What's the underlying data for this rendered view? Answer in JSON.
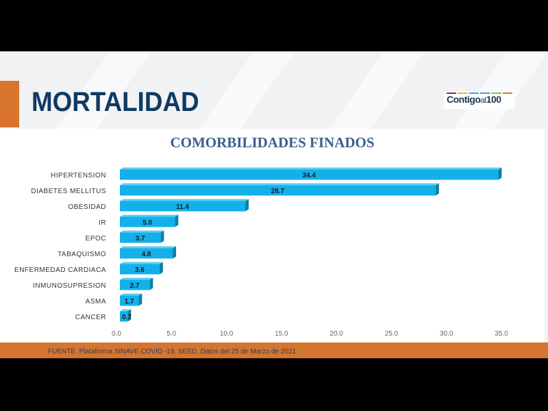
{
  "slide": {
    "title": "MORTALIDAD",
    "logo": "Contigo al 100",
    "source": "FUENTE. Plataforma SINAVE COVID -19, SEED, Datos del 25 de Marzo de 2021"
  },
  "colors": {
    "bar": "#13b0ea",
    "orange": "#d9742c",
    "title": "#0f3a62"
  },
  "chart_data": {
    "type": "bar",
    "orientation": "horizontal",
    "title": "COMORBILIDADES FINADOS",
    "categories": [
      "HIPERTENSION",
      "DIABETES MELLITUS",
      "OBESIDAD",
      "IR",
      "EPOC",
      "TABAQUISMO",
      "ENFERMEDAD CARDIACA",
      "INMUNOSUPRESION",
      "ASMA",
      "CANCER"
    ],
    "values": [
      34.4,
      28.7,
      11.4,
      5.0,
      3.7,
      4.8,
      3.6,
      2.7,
      1.7,
      0.7
    ],
    "xlim": [
      0,
      35
    ],
    "xticks": [
      "0.0",
      "5.0",
      "10.0",
      "15.0",
      "20.0",
      "25.0",
      "30.0",
      "35.0"
    ],
    "grid": false
  }
}
